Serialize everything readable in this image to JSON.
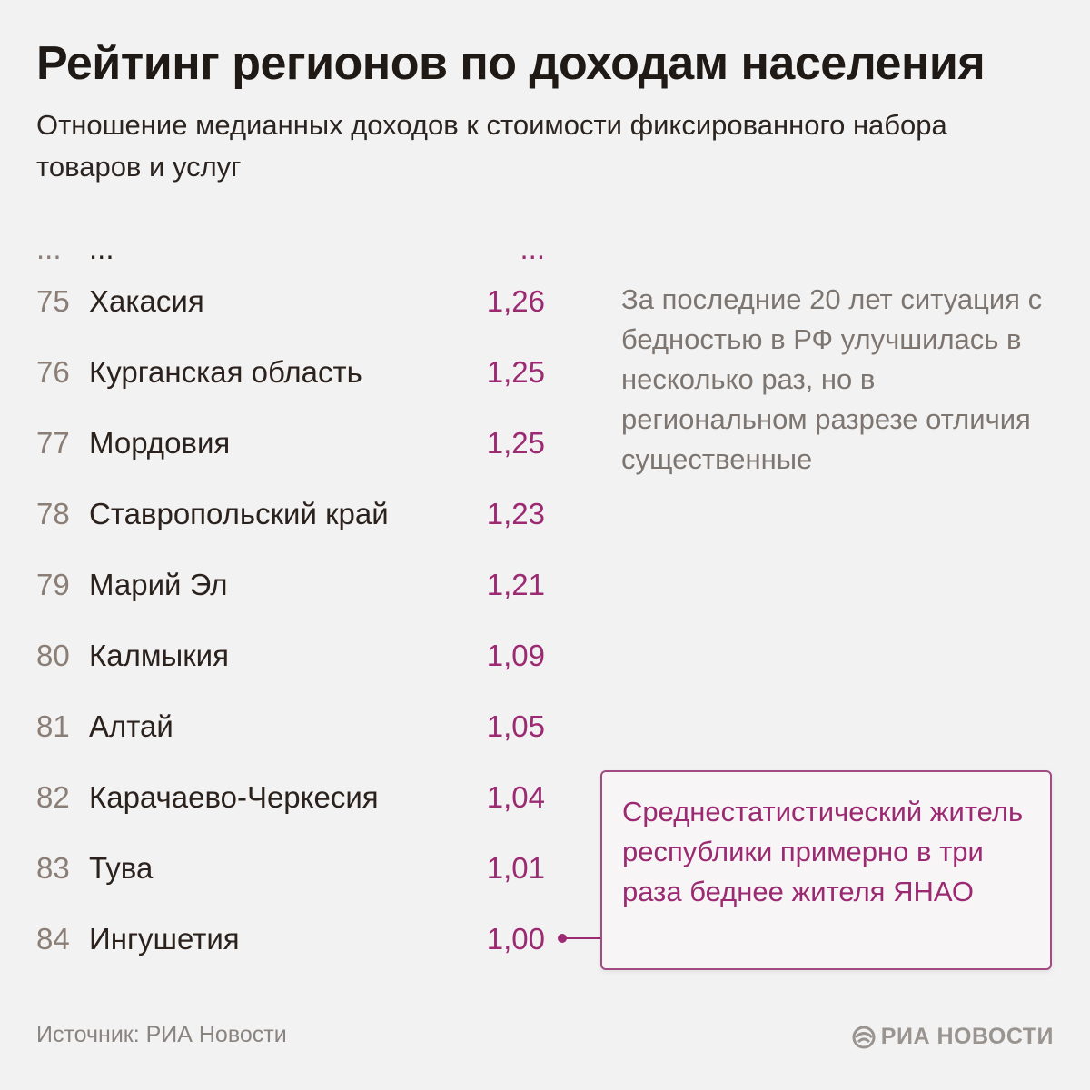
{
  "header": {
    "title": "Рейтинг регионов по доходам населения",
    "subtitle": "Отношение медианных доходов к стоимости фиксированного набора товаров и услуг"
  },
  "table": {
    "ellipsis_row": {
      "rank": "...",
      "region": "...",
      "value": "..."
    },
    "rows": [
      {
        "rank": "75",
        "region": "Хакасия",
        "value": "1,26"
      },
      {
        "rank": "76",
        "region": "Курганская область",
        "value": "1,25"
      },
      {
        "rank": "77",
        "region": "Мордовия",
        "value": "1,25"
      },
      {
        "rank": "78",
        "region": "Ставропольский край",
        "value": "1,23"
      },
      {
        "rank": "79",
        "region": "Марий Эл",
        "value": "1,21"
      },
      {
        "rank": "80",
        "region": "Калмыкия",
        "value": "1,09"
      },
      {
        "rank": "81",
        "region": "Алтай",
        "value": "1,05"
      },
      {
        "rank": "82",
        "region": "Карачаево-Черкесия",
        "value": "1,04"
      },
      {
        "rank": "83",
        "region": "Тува",
        "value": "1,01"
      },
      {
        "rank": "84",
        "region": "Ингушетия",
        "value": "1,00"
      }
    ]
  },
  "note": "За последние 20 лет ситуация с бедностью в РФ улучшилась в несколько раз, но в региональном разрезе отличия существенные",
  "callout": "Среднестатистический житель республики примерно в три раза беднее жителя ЯНАО",
  "footer": {
    "source": "Источник: РИА Новости",
    "brand": "РИА НОВОСТИ"
  },
  "colors": {
    "accent": "#9b2a72",
    "background": "#f3f2f2",
    "text": "#2b221d",
    "muted": "#8a7e76"
  },
  "icons": {
    "brand_logo": "ria-logo-icon"
  }
}
